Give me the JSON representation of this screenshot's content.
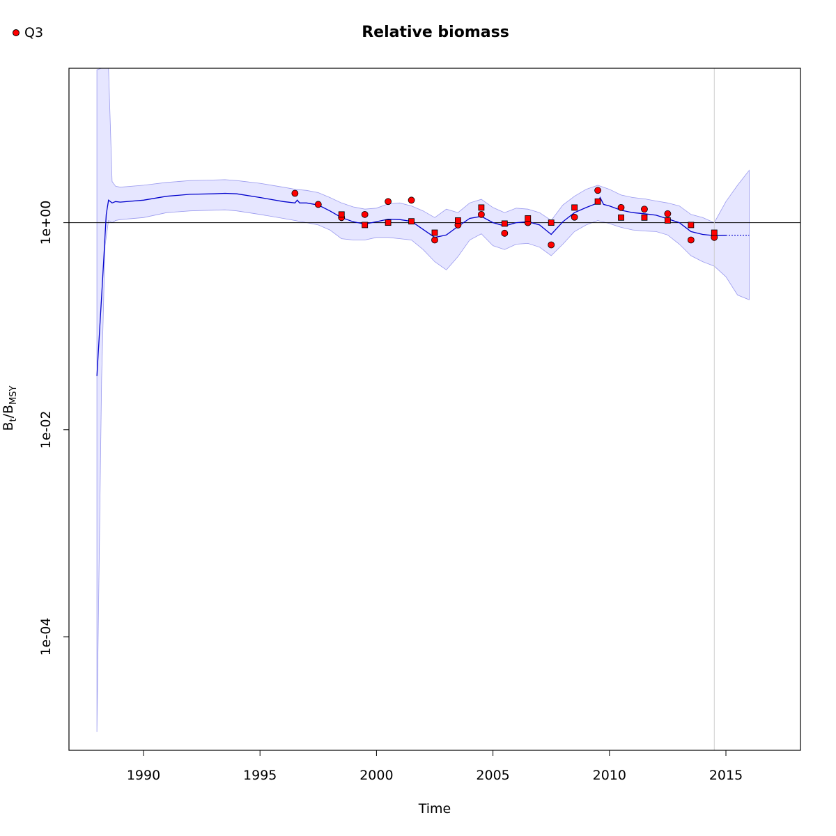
{
  "chart_data": {
    "type": "line",
    "title": "Relative biomass",
    "xlabel": "Time",
    "ylabel": "B",
    "ylabel_sub_t": "t",
    "ylabel_sep": "/",
    "ylabel_b2": "B",
    "ylabel_sub_msy": "MSY",
    "y_scale": "log",
    "xlim": [
      1986.8,
      2018.2
    ],
    "ylim": [
      8e-06,
      31
    ],
    "x_ticks": [
      1990,
      1995,
      2000,
      2005,
      2010,
      2015
    ],
    "x_tick_labels": [
      "1990",
      "1995",
      "2000",
      "2005",
      "2010",
      "2015"
    ],
    "y_ticks": [
      1,
      0.01,
      0.0001
    ],
    "y_tick_labels": [
      "1e+00",
      "1e-02",
      "1e-04"
    ],
    "reference_line_y": 1,
    "vertical_line_x": 2014.5,
    "legend": {
      "position": "top-left",
      "entries": [
        {
          "label": "Q3",
          "color": "#ff0000"
        }
      ]
    },
    "colors": {
      "line": "#0000cc",
      "band": "#e6e6ff",
      "band_edge": "#9999ee",
      "points": "#ff0000"
    },
    "estimate": {
      "x": [
        1988.0,
        1988.25,
        1988.4,
        1988.5,
        1988.65,
        1988.8,
        1989,
        1990,
        1991,
        1992,
        1993,
        1993.5,
        1994,
        1995,
        1996,
        1996.5,
        1996.6,
        1996.7,
        1997,
        1997.5,
        1998,
        1998.5,
        1999,
        1999.5,
        2000,
        2000.5,
        2001,
        2001.5,
        2002,
        2002.5,
        2003,
        2003.5,
        2004,
        2004.5,
        2005,
        2005.5,
        2006,
        2006.5,
        2007,
        2007.5,
        2008,
        2008.5,
        2009,
        2009.5,
        2009.6,
        2009.75,
        2010,
        2010.5,
        2011,
        2011.5,
        2012,
        2012.5,
        2013,
        2013.5,
        2014,
        2014.5,
        2015
      ],
      "y": [
        0.033,
        0.3,
        1.2,
        1.65,
        1.55,
        1.6,
        1.58,
        1.65,
        1.8,
        1.88,
        1.9,
        1.92,
        1.9,
        1.75,
        1.6,
        1.55,
        1.65,
        1.55,
        1.55,
        1.48,
        1.3,
        1.12,
        1.02,
        0.97,
        1.02,
        1.08,
        1.07,
        1.03,
        0.86,
        0.72,
        0.76,
        0.92,
        1.1,
        1.15,
        1.0,
        0.93,
        1.0,
        1.02,
        0.95,
        0.77,
        1.02,
        1.25,
        1.4,
        1.55,
        1.75,
        1.5,
        1.45,
        1.32,
        1.25,
        1.22,
        1.18,
        1.09,
        1.0,
        0.82,
        0.77,
        0.75,
        0.755
      ]
    },
    "forecast": {
      "x": [
        2015,
        2016
      ],
      "y": [
        0.755,
        0.755
      ]
    },
    "band": {
      "x": [
        1988.0,
        1988.2,
        1988.35,
        1988.5,
        1988.65,
        1988.8,
        1989,
        1990,
        1991,
        1992,
        1993,
        1993.5,
        1994,
        1995,
        1996,
        1996.5,
        1997,
        1997.5,
        1998,
        1998.5,
        1999,
        1999.5,
        2000,
        2000.5,
        2001,
        2001.5,
        2002,
        2002.5,
        2003,
        2003.5,
        2004,
        2004.5,
        2005,
        2005.5,
        2006,
        2006.5,
        2007,
        2007.5,
        2008,
        2008.5,
        2009,
        2009.5,
        2010,
        2010.5,
        2011,
        2011.5,
        2012,
        2012.5,
        2013,
        2013.5,
        2014,
        2014.5,
        2015,
        2015.5,
        2016
      ],
      "upper": [
        30,
        31,
        31,
        31,
        2.5,
        2.25,
        2.2,
        2.3,
        2.45,
        2.55,
        2.58,
        2.6,
        2.55,
        2.4,
        2.2,
        2.1,
        2.05,
        1.95,
        1.75,
        1.55,
        1.42,
        1.35,
        1.38,
        1.52,
        1.55,
        1.45,
        1.3,
        1.12,
        1.35,
        1.25,
        1.55,
        1.68,
        1.4,
        1.25,
        1.38,
        1.35,
        1.25,
        1.05,
        1.48,
        1.8,
        2.1,
        2.3,
        2.1,
        1.85,
        1.75,
        1.7,
        1.62,
        1.55,
        1.45,
        1.2,
        1.12,
        1.0,
        1.6,
        2.3,
        3.2
      ],
      "lower": [
        1.2e-05,
        0.03,
        0.6,
        1.05,
        1.0,
        1.05,
        1.07,
        1.12,
        1.25,
        1.3,
        1.32,
        1.33,
        1.3,
        1.2,
        1.1,
        1.05,
        1.0,
        0.95,
        0.85,
        0.7,
        0.68,
        0.68,
        0.72,
        0.72,
        0.7,
        0.68,
        0.55,
        0.42,
        0.35,
        0.47,
        0.68,
        0.78,
        0.6,
        0.55,
        0.62,
        0.63,
        0.58,
        0.48,
        0.62,
        0.82,
        0.95,
        1.05,
        0.98,
        0.9,
        0.85,
        0.83,
        0.82,
        0.76,
        0.62,
        0.48,
        0.42,
        0.38,
        0.3,
        0.2,
        0.18
      ]
    },
    "series": [
      {
        "label": "Q3",
        "marker": "circle",
        "x": [
          1996.5,
          1997.5,
          1998.5,
          1999.5,
          2000.5,
          2001.5,
          2002.5,
          2003.5,
          2004.5,
          2005.5,
          2006.5,
          2007.5,
          2008.5,
          2009.5,
          2010.5,
          2011.5,
          2012.5,
          2013.5,
          2014.5
        ],
        "y": [
          1.92,
          1.5,
          1.12,
          1.2,
          1.6,
          1.65,
          0.68,
          0.95,
          1.2,
          0.79,
          1.0,
          0.61,
          1.13,
          2.05,
          1.4,
          1.35,
          1.22,
          0.68,
          0.72
        ]
      },
      {
        "marker": "square",
        "x": [
          1998.5,
          1999.5,
          2000.5,
          2001.5,
          2002.5,
          2003.5,
          2004.5,
          2005.5,
          2006.5,
          2007.5,
          2008.5,
          2009.5,
          2010.5,
          2011.5,
          2012.5,
          2013.5,
          2014.5
        ],
        "y": [
          1.2,
          0.95,
          1.0,
          1.03,
          0.8,
          1.05,
          1.4,
          0.98,
          1.1,
          1.0,
          1.4,
          1.6,
          1.12,
          1.12,
          1.05,
          0.95,
          0.8
        ]
      }
    ]
  }
}
